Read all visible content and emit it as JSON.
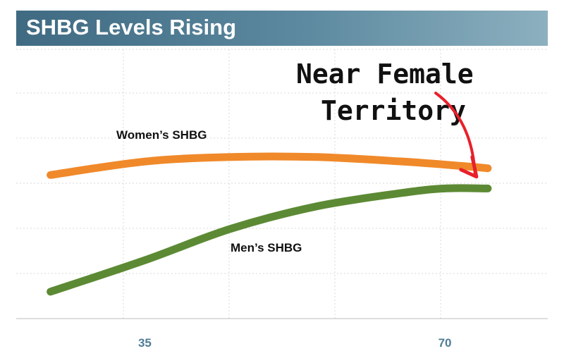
{
  "chart_data": {
    "type": "line",
    "title": "SHBG Levels Rising",
    "xlabel": "",
    "ylabel": "",
    "x_ticks": [
      35,
      70
    ],
    "xlim": [
      20,
      82
    ],
    "ylim": [
      0,
      6
    ],
    "grid": true,
    "series": [
      {
        "name": "Women’s SHBG",
        "color": "#f0892a",
        "x": [
          24,
          35,
          45,
          55,
          65,
          72,
          75
        ],
        "y": [
          3.2,
          3.5,
          3.6,
          3.6,
          3.5,
          3.4,
          3.35
        ]
      },
      {
        "name": "Men’s SHBG",
        "color": "#5c8a34",
        "x": [
          24,
          35,
          45,
          55,
          65,
          70,
          75
        ],
        "y": [
          0.6,
          1.3,
          2.0,
          2.5,
          2.8,
          2.9,
          2.9
        ]
      }
    ],
    "annotation": {
      "lines": [
        "Near Female",
        "Territory"
      ],
      "arrow_color": "#e8202a"
    }
  }
}
